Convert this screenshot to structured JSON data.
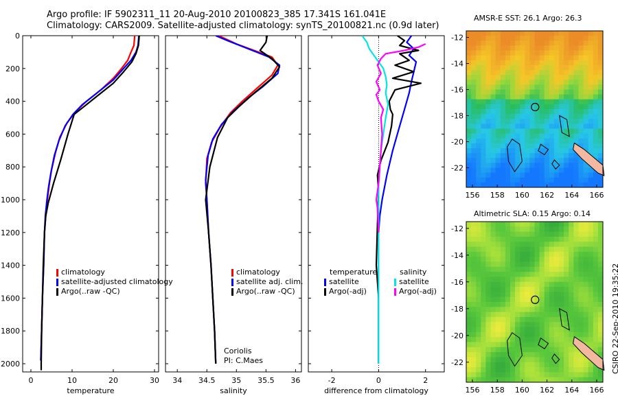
{
  "header": {
    "line1": "Argo profile: IF 5902311_11 20-Aug-2010 20100823_385 17.341S 161.041E",
    "line2": "Climatology: CARS2009. Satellite-adjusted climatology: synTS_20100821.nc (0.9d later)"
  },
  "colors": {
    "clim": "#ff0000",
    "sat": "#0000ff",
    "argo": "#000000",
    "sat_sal": "#00e5e5",
    "argo_sal": "#ff00ff"
  },
  "chart_data": [
    {
      "id": "temperature",
      "type": "line",
      "xlabel": "temperature",
      "ylabel": "",
      "xlim": [
        -2,
        31
      ],
      "ylim": [
        0,
        2050
      ],
      "xticks": [
        0,
        10,
        20,
        30
      ],
      "yticks": [
        0,
        200,
        400,
        600,
        800,
        1000,
        1200,
        1400,
        1600,
        1800,
        2000
      ],
      "series": [
        {
          "name": "climatology",
          "color": "#ff0000",
          "points": [
            [
              25.2,
              0
            ],
            [
              25,
              60
            ],
            [
              24.3,
              100
            ],
            [
              23.5,
              150
            ],
            [
              22,
              200
            ],
            [
              20,
              260
            ],
            [
              17,
              330
            ],
            [
              13.5,
              400
            ],
            [
              11,
              460
            ],
            [
              8.8,
              530
            ],
            [
              7,
              620
            ],
            [
              5.9,
              720
            ],
            [
              5,
              820
            ],
            [
              4.5,
              900
            ],
            [
              4,
              1000
            ],
            [
              3.6,
              1100
            ],
            [
              3.3,
              1200
            ],
            [
              3.1,
              1400
            ],
            [
              2.8,
              1600
            ],
            [
              2.6,
              1800
            ],
            [
              2.4,
              1980
            ]
          ]
        },
        {
          "name": "satellite-adjusted climatology",
          "color": "#0000ff",
          "points": [
            [
              26.2,
              0
            ],
            [
              26,
              60
            ],
            [
              25.5,
              100
            ],
            [
              24.3,
              150
            ],
            [
              22.5,
              200
            ],
            [
              20,
              270
            ],
            [
              16,
              350
            ],
            [
              12.5,
              420
            ],
            [
              10.2,
              480
            ],
            [
              8.3,
              550
            ],
            [
              6.8,
              640
            ],
            [
              5.7,
              730
            ],
            [
              4.9,
              830
            ],
            [
              4.3,
              920
            ],
            [
              3.9,
              1000
            ],
            [
              3.5,
              1100
            ],
            [
              3.3,
              1200
            ],
            [
              3.1,
              1400
            ],
            [
              2.8,
              1600
            ],
            [
              2.6,
              1800
            ],
            [
              2.4,
              1980
            ]
          ]
        },
        {
          "name": "Argo(..raw -QC)",
          "color": "#000000",
          "points": [
            [
              26.3,
              0
            ],
            [
              26.1,
              60
            ],
            [
              25.5,
              110
            ],
            [
              24.5,
              160
            ],
            [
              22.5,
              220
            ],
            [
              20,
              290
            ],
            [
              16,
              370
            ],
            [
              13,
              430
            ],
            [
              10.5,
              480
            ],
            [
              9,
              600
            ],
            [
              7.2,
              760
            ],
            [
              5.5,
              900
            ],
            [
              4.2,
              1020
            ],
            [
              3.6,
              1100
            ],
            [
              3.3,
              1200
            ],
            [
              3,
              1400
            ],
            [
              2.8,
              1600
            ],
            [
              2.6,
              1800
            ],
            [
              2.5,
              2000
            ],
            [
              2.5,
              2040
            ]
          ]
        }
      ],
      "legend": [
        "climatology",
        "satellite-adjusted climatology",
        "Argo(..raw -QC)"
      ]
    },
    {
      "id": "salinity",
      "type": "line",
      "xlabel": "salinity",
      "ylabel": "",
      "xlim": [
        33.8,
        36.1
      ],
      "ylim": [
        0,
        2050
      ],
      "xticks": [
        34,
        34.5,
        35,
        35.5,
        36
      ],
      "xticklabels": [
        "34",
        "34.5",
        "35",
        "35.5",
        "36"
      ],
      "series": [
        {
          "name": "climatology",
          "color": "#ff0000",
          "points": [
            [
              34.7,
              0
            ],
            [
              35,
              50
            ],
            [
              35.3,
              90
            ],
            [
              35.6,
              130
            ],
            [
              35.7,
              180
            ],
            [
              35.6,
              240
            ],
            [
              35.35,
              320
            ],
            [
              35.1,
              400
            ],
            [
              34.9,
              470
            ],
            [
              34.72,
              560
            ],
            [
              34.58,
              650
            ],
            [
              34.5,
              750
            ],
            [
              34.48,
              900
            ],
            [
              34.5,
              1000
            ],
            [
              34.53,
              1200
            ],
            [
              34.57,
              1400
            ],
            [
              34.6,
              1600
            ],
            [
              34.63,
              1800
            ],
            [
              34.65,
              2000
            ]
          ]
        },
        {
          "name": "satellite adj. clim.",
          "color": "#0000ff",
          "points": [
            [
              34.65,
              0
            ],
            [
              34.85,
              30
            ],
            [
              35.2,
              80
            ],
            [
              35.55,
              130
            ],
            [
              35.73,
              180
            ],
            [
              35.7,
              230
            ],
            [
              35.45,
              310
            ],
            [
              35.2,
              380
            ],
            [
              34.95,
              460
            ],
            [
              34.75,
              540
            ],
            [
              34.6,
              630
            ],
            [
              34.52,
              730
            ],
            [
              34.48,
              880
            ],
            [
              34.5,
              1000
            ],
            [
              34.53,
              1200
            ],
            [
              34.57,
              1400
            ],
            [
              34.6,
              1600
            ],
            [
              34.63,
              1800
            ],
            [
              34.65,
              2000
            ]
          ]
        },
        {
          "name": "Argo(..raw -QC)",
          "color": "#000000",
          "points": [
            [
              35.52,
              0
            ],
            [
              35.5,
              40
            ],
            [
              35.4,
              90
            ],
            [
              35.6,
              140
            ],
            [
              35.73,
              190
            ],
            [
              35.6,
              260
            ],
            [
              35.3,
              350
            ],
            [
              35.05,
              430
            ],
            [
              34.85,
              500
            ],
            [
              34.68,
              620
            ],
            [
              34.55,
              800
            ],
            [
              34.48,
              1000
            ],
            [
              34.53,
              1200
            ],
            [
              34.57,
              1400
            ],
            [
              34.6,
              1600
            ],
            [
              34.63,
              1800
            ],
            [
              34.65,
              2000
            ]
          ]
        }
      ],
      "legend": [
        "climatology",
        "satellite adj. clim.",
        "Argo(..raw -QC)"
      ],
      "annotations": [
        "Coriolis",
        "PI: C.Maes"
      ]
    },
    {
      "id": "difference",
      "type": "line",
      "xlabel": "difference from climatology",
      "ylabel": "",
      "xlim": [
        -3,
        2.8
      ],
      "ylim": [
        0,
        2050
      ],
      "xticks": [
        -2,
        0,
        2
      ],
      "legend_temperature_title": "temperature",
      "legend_salinity_title": "salinity",
      "series": [
        {
          "name": "satellite (temperature)",
          "color": "#0000ff",
          "points": [
            [
              1.4,
              0
            ],
            [
              1.2,
              40
            ],
            [
              1.5,
              80
            ],
            [
              1.3,
              120
            ],
            [
              1.6,
              160
            ],
            [
              1.5,
              220
            ],
            [
              1.4,
              280
            ],
            [
              1.3,
              350
            ],
            [
              1.1,
              450
            ],
            [
              0.9,
              550
            ],
            [
              0.6,
              700
            ],
            [
              0.35,
              850
            ],
            [
              0.15,
              1000
            ],
            [
              0.05,
              1100
            ],
            [
              0,
              1200
            ],
            [
              0,
              2000
            ]
          ]
        },
        {
          "name": "Argo(-adj) (temperature)",
          "color": "#000000",
          "points": [
            [
              0.8,
              0
            ],
            [
              1.1,
              30
            ],
            [
              0.9,
              60
            ],
            [
              1.7,
              90
            ],
            [
              0.9,
              110
            ],
            [
              1.3,
              150
            ],
            [
              0.7,
              180
            ],
            [
              1.5,
              220
            ],
            [
              0.6,
              260
            ],
            [
              1.8,
              290
            ],
            [
              0.7,
              330
            ],
            [
              0.45,
              400
            ],
            [
              0.5,
              450
            ],
            [
              0.6,
              480
            ],
            [
              0.55,
              550
            ],
            [
              0.4,
              650
            ],
            [
              0.1,
              760
            ],
            [
              -0.05,
              850
            ],
            [
              0,
              950
            ],
            [
              -0.05,
              1150
            ],
            [
              -0.1,
              1400
            ],
            [
              0,
              1600
            ],
            [
              0,
              2000
            ]
          ]
        },
        {
          "name": "satellite (salinity)",
          "color": "#00e5e5",
          "points": [
            [
              -0.7,
              0
            ],
            [
              -0.5,
              40
            ],
            [
              -0.4,
              80
            ],
            [
              -0.2,
              120
            ],
            [
              0,
              160
            ],
            [
              0.2,
              200
            ],
            [
              0.3,
              250
            ],
            [
              0.35,
              300
            ],
            [
              0.3,
              350
            ],
            [
              0.4,
              420
            ],
            [
              0.3,
              500
            ],
            [
              0.2,
              600
            ],
            [
              0.1,
              700
            ],
            [
              0.05,
              800
            ],
            [
              0,
              900
            ],
            [
              0,
              2000
            ]
          ]
        },
        {
          "name": "Argo(-adj) (salinity)",
          "color": "#ff00ff",
          "points": [
            [
              2,
              50
            ],
            [
              1.7,
              70
            ],
            [
              1.1,
              90
            ],
            [
              0.3,
              110
            ],
            [
              0.1,
              140
            ],
            [
              -0.05,
              180
            ],
            [
              0.1,
              230
            ],
            [
              -0.1,
              280
            ],
            [
              0.05,
              330
            ],
            [
              -0.1,
              360
            ],
            [
              0,
              400
            ],
            [
              0.2,
              450
            ],
            [
              0.1,
              500
            ],
            [
              0.15,
              600
            ],
            [
              0.1,
              700
            ],
            [
              0.05,
              800
            ],
            [
              0,
              900
            ],
            [
              -0.1,
              1000
            ],
            [
              -0.05,
              1050
            ],
            [
              0,
              1200
            ]
          ]
        }
      ],
      "legend": [
        "satellite",
        "Argo(-adj)",
        "satellite",
        "Argo(-adj)"
      ]
    },
    {
      "id": "sst_map",
      "type": "heatmap",
      "title": "AMSR-E SST: 26.1 Argo: 26.3",
      "xticks": [
        156,
        158,
        160,
        162,
        164,
        166
      ],
      "yticks": [
        -12,
        -14,
        -16,
        -18,
        -20,
        -22
      ],
      "xlim": [
        155.5,
        166.5
      ],
      "ylim": [
        -23.5,
        -11.5
      ],
      "marker": [
        161.041,
        -17.341
      ]
    },
    {
      "id": "sla_map",
      "type": "heatmap",
      "title": "Altimetric SLA: 0.15 Argo: 0.14",
      "xticks": [
        156,
        158,
        160,
        162,
        164,
        166
      ],
      "yticks": [
        -12,
        -14,
        -16,
        -18,
        -20,
        -22
      ],
      "xlim": [
        155.5,
        166.5
      ],
      "ylim": [
        -23.5,
        -11.5
      ],
      "marker": [
        161.041,
        -17.341
      ]
    }
  ],
  "credit": "CSIRO 22-Sep-2010 19:35:22"
}
